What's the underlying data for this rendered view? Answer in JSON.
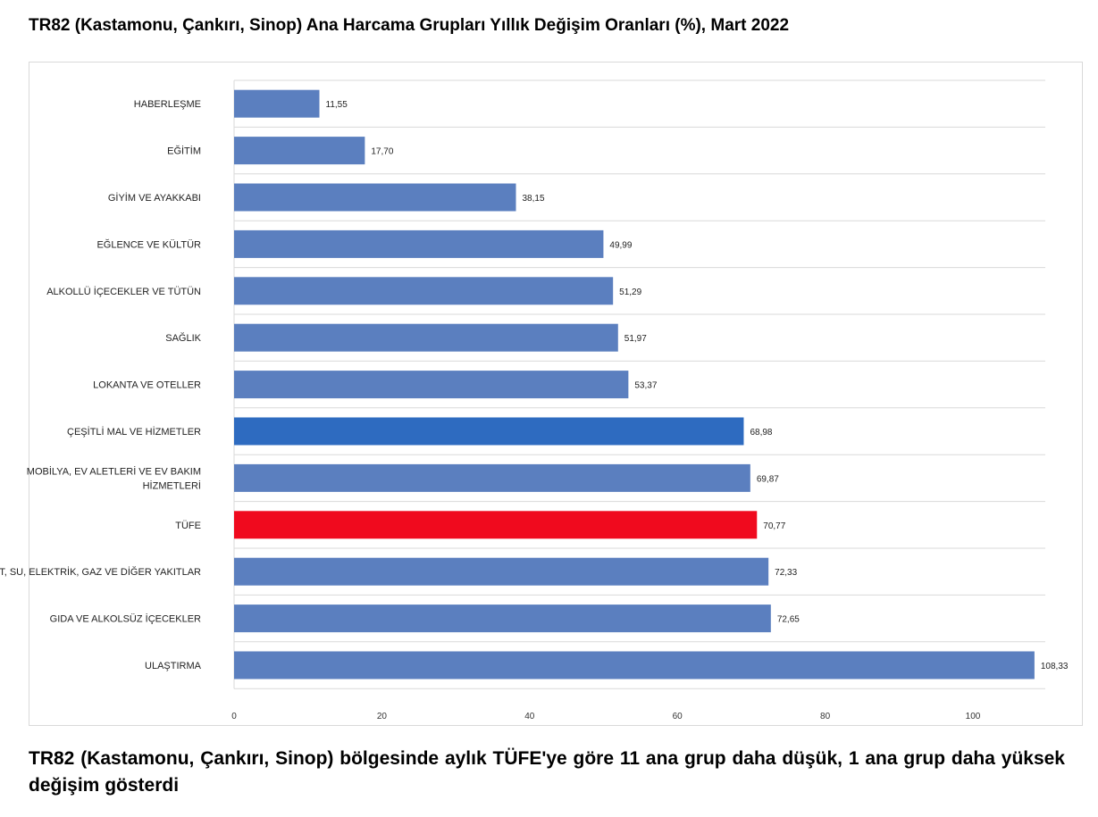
{
  "title": "TR82 (Kastamonu, Çankırı, Sinop) Ana Harcama Grupları Yıllık Değişim Oranları (%), Mart 2022",
  "footer": "TR82 (Kastamonu, Çankırı, Sinop) bölgesinde aylık TÜFE'ye göre 11 ana grup daha düşük, 1 ana grup daha yüksek değişim gösterdi",
  "chart_data": {
    "type": "bar",
    "orientation": "horizontal",
    "title": "TR82 (Kastamonu, Çankırı, Sinop) Ana Harcama Grupları Yıllık Değişim Oranları (%), Mart 2022",
    "xlim": [
      0,
      110
    ],
    "xticks": [
      "0",
      "20",
      "40",
      "60",
      "80",
      "100"
    ],
    "categories": [
      [
        "HABERLEŞME"
      ],
      [
        "EĞİTİM"
      ],
      [
        "GİYİM VE AYAKKABI"
      ],
      [
        "EĞLENCE VE KÜLTÜR"
      ],
      [
        "ALKOLLÜ İÇECEKLER VE TÜTÜN"
      ],
      [
        "SAĞLIK"
      ],
      [
        "LOKANTA VE OTELLER"
      ],
      [
        "ÇEŞİTLİ MAL VE HİZMETLER"
      ],
      [
        "MOBİLYA, EV ALETLERİ VE EV BAKIM",
        "HİZMETLERİ"
      ],
      [
        "TÜFE"
      ],
      [
        "KONUT, SU, ELEKTRİK, GAZ VE DİĞER YAKITLAR"
      ],
      [
        "GIDA VE ALKOLSÜZ İÇECEKLER"
      ],
      [
        "ULAŞTIRMA"
      ]
    ],
    "values": [
      11.55,
      17.7,
      38.15,
      49.99,
      51.29,
      51.97,
      53.37,
      68.98,
      69.87,
      70.77,
      72.33,
      72.65,
      108.33
    ],
    "value_labels": [
      "11,55",
      "17,70",
      "38,15",
      "49,99",
      "51,29",
      "51,97",
      "53,37",
      "68,98",
      "69,87",
      "70,77",
      "72,33",
      "72,65",
      "108,33"
    ],
    "colors": [
      "#5b7fbf",
      "#5b7fbf",
      "#5b7fbf",
      "#5b7fbf",
      "#5b7fbf",
      "#5b7fbf",
      "#5b7fbf",
      "#2e6bc0",
      "#5b7fbf",
      "#f00a1e",
      "#5b7fbf",
      "#5b7fbf",
      "#5b7fbf"
    ],
    "grid": true,
    "legend": "none"
  }
}
